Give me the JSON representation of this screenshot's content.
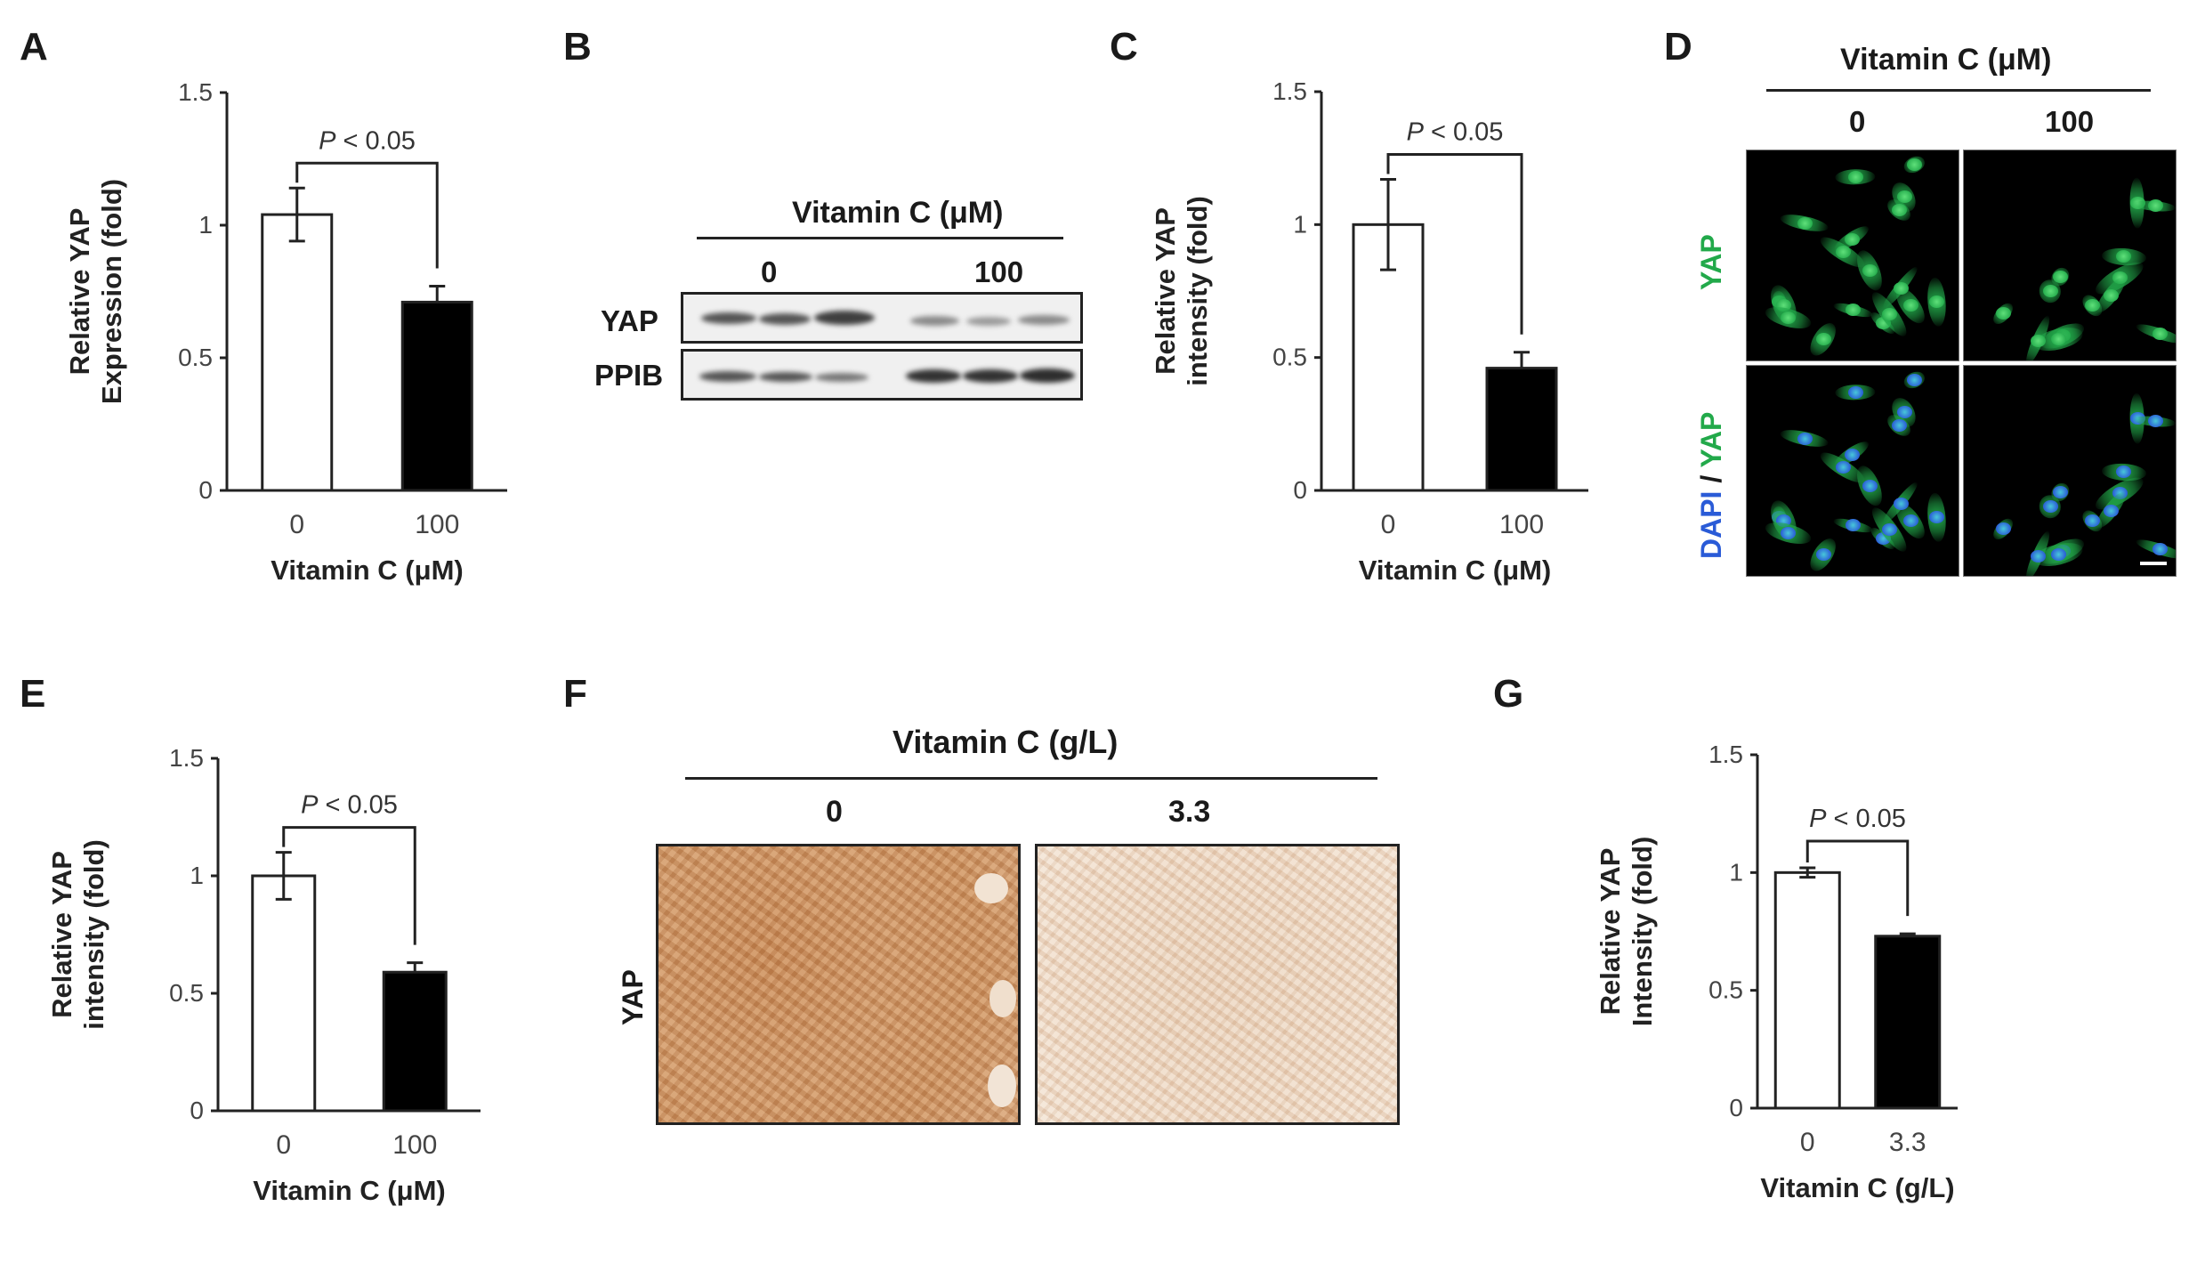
{
  "panels": {
    "A": {
      "letter": "A",
      "chart_data": {
        "type": "bar",
        "categories": [
          "0",
          "100"
        ],
        "values": [
          1.04,
          0.71
        ],
        "errors": [
          0.1,
          0.06
        ],
        "bar_colors": [
          "#ffffff",
          "#000000"
        ],
        "ylim": [
          0,
          1.5
        ],
        "yticks": [
          "0",
          "0.5",
          "1",
          "1.5"
        ],
        "xlabel": "Vitamin C (μM)",
        "ylabel_line1": "Relative YAP",
        "ylabel_line2": "Expression (fold)",
        "significance": "P < 0.05"
      }
    },
    "B": {
      "letter": "B",
      "title": "Vitamin C (μM)",
      "doses": [
        "0",
        "100"
      ],
      "rows": [
        "YAP",
        "PPIB"
      ]
    },
    "C": {
      "letter": "C",
      "chart_data": {
        "type": "bar",
        "categories": [
          "0",
          "100"
        ],
        "values": [
          1.0,
          0.46
        ],
        "errors": [
          0.17,
          0.06
        ],
        "bar_colors": [
          "#ffffff",
          "#000000"
        ],
        "ylim": [
          0,
          1.5
        ],
        "yticks": [
          "0",
          "0.5",
          "1",
          "1.5"
        ],
        "xlabel": "Vitamin C (μM)",
        "ylabel_line1": "Relative YAP",
        "ylabel_line2": "intensity (fold)",
        "significance": "P < 0.05"
      }
    },
    "D": {
      "letter": "D",
      "title": "Vitamin C (μM)",
      "doses": [
        "0",
        "100"
      ],
      "row1_label": "YAP",
      "row2_label_dapi": "DAPI",
      "row2_label_sep": " / ",
      "row2_label_yap": "YAP",
      "colors": {
        "yap": "#22a94a",
        "dapi": "#2a5bd7"
      }
    },
    "E": {
      "letter": "E",
      "chart_data": {
        "type": "bar",
        "categories": [
          "0",
          "100"
        ],
        "values": [
          1.0,
          0.59
        ],
        "errors": [
          0.1,
          0.04
        ],
        "bar_colors": [
          "#ffffff",
          "#000000"
        ],
        "ylim": [
          0,
          1.5
        ],
        "yticks": [
          "0",
          "0.5",
          "1",
          "1.5"
        ],
        "xlabel": "Vitamin C (μM)",
        "ylabel_line1": "Relative YAP",
        "ylabel_line2": "intensity (fold)",
        "significance": "P < 0.05"
      }
    },
    "F": {
      "letter": "F",
      "title": "Vitamin C (g/L)",
      "doses": [
        "0",
        "3.3"
      ],
      "row_label": "YAP"
    },
    "G": {
      "letter": "G",
      "chart_data": {
        "type": "bar",
        "categories": [
          "0",
          "3.3"
        ],
        "values": [
          1.0,
          0.73
        ],
        "errors": [
          0.02,
          0.01
        ],
        "bar_colors": [
          "#ffffff",
          "#000000"
        ],
        "ylim": [
          0,
          1.5
        ],
        "yticks": [
          "0",
          "0.5",
          "1",
          "1.5"
        ],
        "xlabel": "Vitamin C (g/L)",
        "ylabel_line1": "Relative YAP",
        "ylabel_line2": "Intensity (fold)",
        "significance": "P < 0.05"
      }
    }
  }
}
